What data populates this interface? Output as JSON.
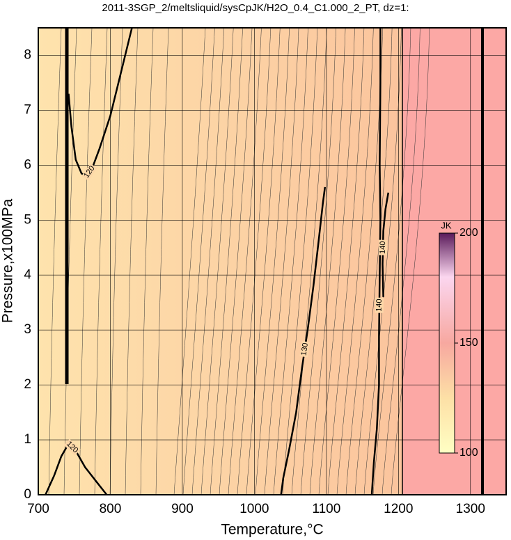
{
  "chart_data": {
    "type": "contour",
    "title": "2011-3SGP_2/meltsliquid/sysCpJK/H2O_0.4_C1.000_2_PT, dz=1:",
    "xlabel": "Temperature,°C",
    "ylabel": "Pressure,x100MPa",
    "xlim": [
      700,
      1350
    ],
    "ylim": [
      0,
      8.5
    ],
    "xticks": [
      700,
      800,
      900,
      1000,
      1100,
      1200,
      1300
    ],
    "yticks": [
      0,
      1,
      2,
      3,
      4,
      5,
      6,
      7,
      8
    ],
    "grid": true,
    "contours": [
      {
        "level": 120,
        "x": [
          710,
          722,
          732,
          742,
          752,
          765,
          780,
          795
        ],
        "y": [
          0,
          0.35,
          0.7,
          0.93,
          0.8,
          0.5,
          0.25,
          0
        ]
      },
      {
        "level": 120,
        "x": [
          742,
          746,
          752,
          760,
          767,
          775,
          785,
          800,
          815,
          830
        ],
        "y": [
          7.3,
          6.7,
          6.1,
          5.85,
          5.8,
          5.95,
          6.3,
          6.9,
          7.7,
          8.5
        ]
      },
      {
        "level": 130,
        "x": [
          1037,
          1040,
          1048,
          1058,
          1066,
          1074,
          1082,
          1089,
          1095,
          1098
        ],
        "y": [
          0,
          0.3,
          0.8,
          1.5,
          2.3,
          3,
          3.8,
          4.6,
          5.3,
          5.6
        ]
      },
      {
        "level": 140,
        "x": [
          1163,
          1166,
          1170,
          1173,
          1173,
          1174,
          1175,
          1174,
          1175,
          1175
        ],
        "y": [
          0,
          0.6,
          1.2,
          2,
          2.9,
          4,
          5,
          6,
          7.5,
          8.5
        ]
      },
      {
        "level": 140,
        "x": [
          1179,
          1178,
          1179,
          1182,
          1186
        ],
        "y": [
          3.6,
          4.2,
          4.8,
          5.2,
          5.5
        ]
      }
    ],
    "colorbar": {
      "label": "JK",
      "lim": [
        100,
        200
      ],
      "ticks": [
        100,
        150,
        200
      ]
    }
  }
}
